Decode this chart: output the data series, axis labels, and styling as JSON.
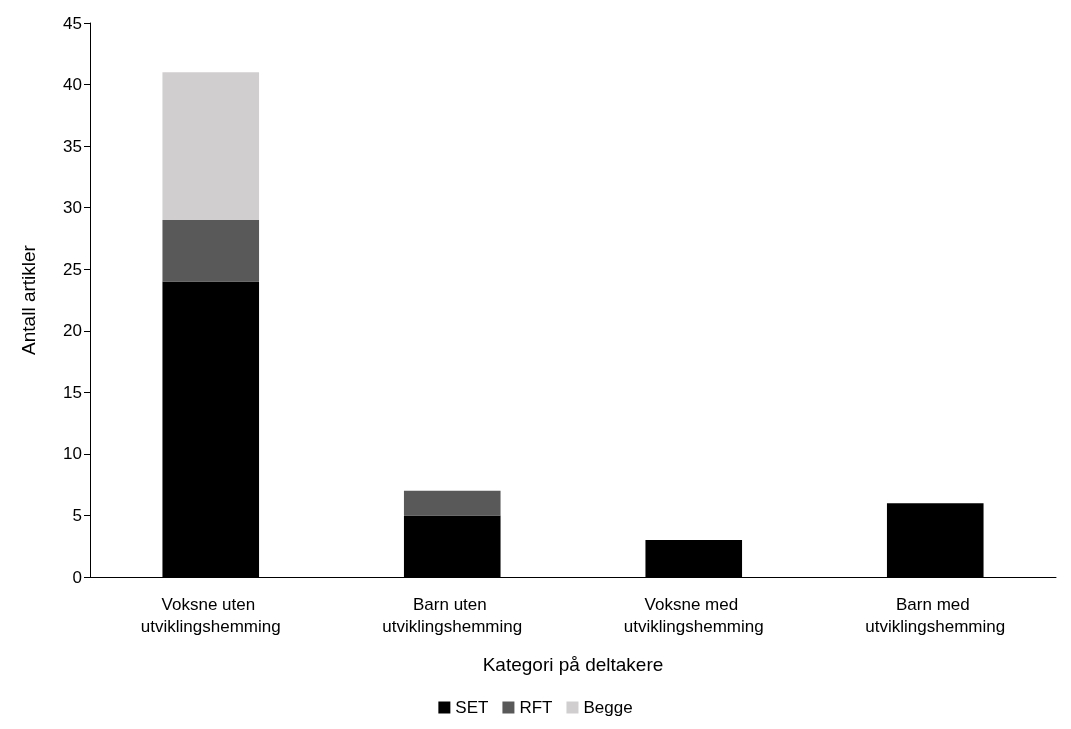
{
  "chart_data": {
    "type": "bar",
    "stacked": true,
    "xlabel": "Kategori på deltakere",
    "ylabel": "Antall artikler",
    "categories": [
      "Voksne uten utviklingshemming",
      "Barn uten utviklingshemming",
      "Voksne med utviklingshemming",
      "Barn med utviklingshemming"
    ],
    "series": [
      {
        "name": "SET",
        "color": "#000000",
        "values": [
          24,
          5,
          3,
          6
        ]
      },
      {
        "name": "RFT",
        "color": "#595959",
        "values": [
          5,
          2,
          0,
          0
        ]
      },
      {
        "name": "Begge",
        "color": "#d0cece",
        "values": [
          12,
          0,
          0,
          0
        ]
      }
    ],
    "ylim": [
      0,
      45
    ],
    "yticks": [
      0,
      5,
      10,
      15,
      20,
      25,
      30,
      35,
      40,
      45
    ],
    "grid": false,
    "legend": "bottom"
  }
}
